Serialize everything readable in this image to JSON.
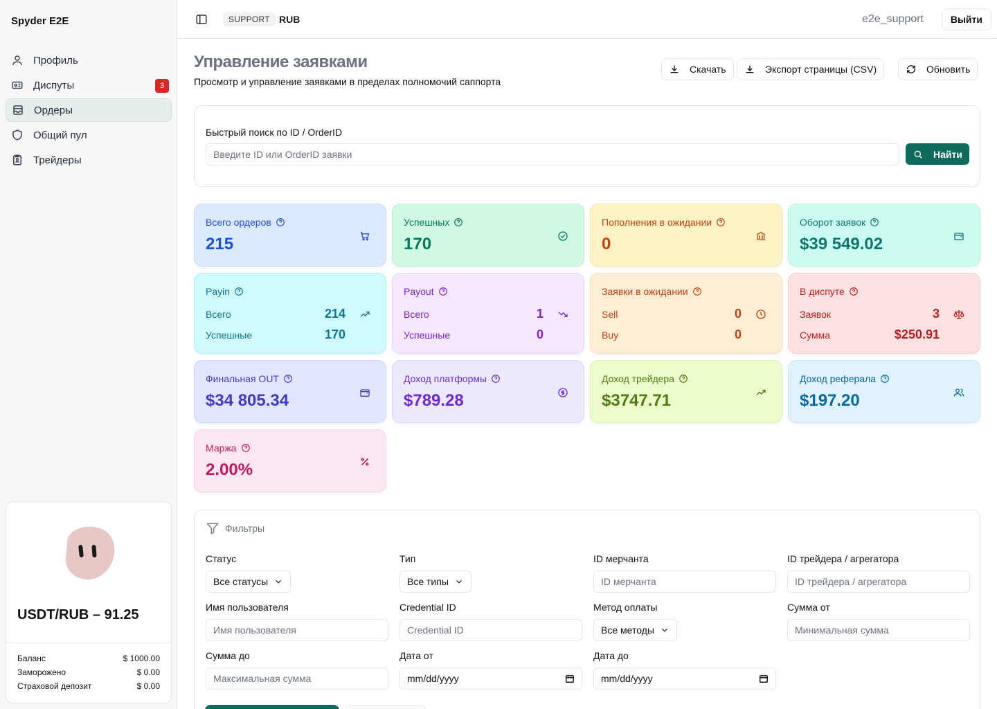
{
  "brand": "Spyder E2E",
  "nav": [
    {
      "label": "Профиль",
      "icon": "user-icon"
    },
    {
      "label": "Диспуты",
      "icon": "ticket-icon",
      "badge": "3"
    },
    {
      "label": "Ордеры",
      "icon": "inbox-icon",
      "active": true
    },
    {
      "label": "Общий пул",
      "icon": "shield-icon"
    },
    {
      "label": "Трейдеры",
      "icon": "id-badge-icon"
    }
  ],
  "rate": {
    "title": "USDT/RUB – 91.25",
    "rows": [
      {
        "label": "Баланс",
        "value": "$ 1000.00"
      },
      {
        "label": "Заморожено",
        "value": "$ 0.00"
      },
      {
        "label": "Страховой депозит",
        "value": "$ 0.00"
      }
    ]
  },
  "topbar": {
    "role": "SUPPORT",
    "currency": "RUB",
    "username": "e2e_support",
    "logout": "Выйти"
  },
  "page": {
    "title": "Управление заявками",
    "subtitle": "Просмотр и управление заявками в пределах полномочий саппорта",
    "download": "Скачать",
    "export": "Экспорт страницы (CSV)",
    "refresh": "Обновить"
  },
  "search": {
    "label": "Быстрый поиск по ID / OrderID",
    "placeholder": "Введите ID или OrderID заявки",
    "button": "Найти"
  },
  "stats": {
    "total": {
      "label": "Всего ордеров",
      "value": "215"
    },
    "success": {
      "label": "Успешных",
      "value": "170"
    },
    "deposits": {
      "label": "Пополнения в ожидании",
      "value": "0"
    },
    "turnover": {
      "label": "Оборот заявок",
      "value": "$39 549.02"
    },
    "payin": {
      "label": "Payin",
      "r1k": "Всего",
      "r1v": "214",
      "r2k": "Успешные",
      "r2v": "170"
    },
    "payout": {
      "label": "Payout",
      "r1k": "Всего",
      "r1v": "1",
      "r2k": "Успешные",
      "r2v": "0"
    },
    "pending": {
      "label": "Заявки в ожидании",
      "r1k": "Sell",
      "r1v": "0",
      "r2k": "Buy",
      "r2v": "0"
    },
    "dispute": {
      "label": "В диспуте",
      "r1k": "Заявок",
      "r1v": "3",
      "r2k": "Сумма",
      "r2v": "$250.91"
    },
    "final_out": {
      "label": "Финальная OUT",
      "value": "$34 805.34"
    },
    "platform": {
      "label": "Доход платформы",
      "value": "$789.28"
    },
    "trader": {
      "label": "Доход трейдера",
      "value": "$3747.71"
    },
    "referral": {
      "label": "Доход реферала",
      "value": "$197.20"
    },
    "margin": {
      "label": "Маржа",
      "value": "2.00%"
    }
  },
  "filters": {
    "title": "Фильтры",
    "status": {
      "label": "Статус",
      "value": "Все статусы"
    },
    "type": {
      "label": "Тип",
      "value": "Все типы"
    },
    "merchant": {
      "label": "ID мерчанта",
      "placeholder": "ID мерчанта"
    },
    "trader": {
      "label": "ID трейдера / агрегатора",
      "placeholder": "ID трейдера / агрегатора"
    },
    "username": {
      "label": "Имя пользователя",
      "placeholder": "Имя пользователя"
    },
    "credential": {
      "label": "Credential ID",
      "placeholder": "Credential ID"
    },
    "method": {
      "label": "Метод оплаты",
      "value": "Все методы"
    },
    "amount_from": {
      "label": "Сумма от",
      "placeholder": "Минимальная сумма"
    },
    "amount_to": {
      "label": "Сумма до",
      "placeholder": "Максимальная сумма"
    },
    "date_from": {
      "label": "Дата от",
      "value": "mm/dd/yyyy"
    },
    "date_to": {
      "label": "Дата до",
      "value": "mm/dd/yyyy"
    }
  },
  "colors": {
    "primary": "#0f6b5c",
    "badge": "#dc2626"
  }
}
